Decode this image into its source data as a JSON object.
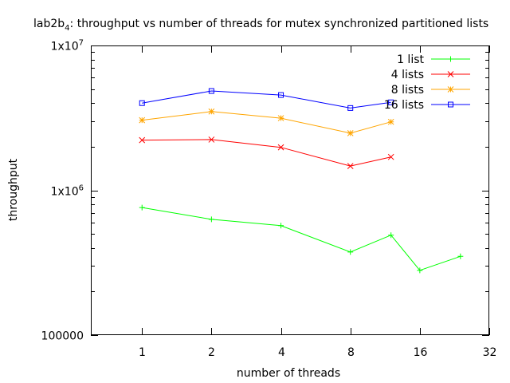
{
  "chart_data": {
    "type": "line",
    "title_prefix": "lab2b",
    "title_subscript": "4",
    "title_rest": ": throughput vs number of threads for mutex synchronized partitioned lists",
    "xlabel": "number of threads",
    "ylabel": "throughput",
    "x_scale": "log2",
    "y_scale": "log10",
    "xlim": [
      0.6,
      32
    ],
    "ylim": [
      100000,
      10000000
    ],
    "x_ticks": [
      {
        "value": 1,
        "label": "1"
      },
      {
        "value": 2,
        "label": "2"
      },
      {
        "value": 4,
        "label": "4"
      },
      {
        "value": 8,
        "label": "8"
      },
      {
        "value": 16,
        "label": "16"
      },
      {
        "value": 32,
        "label": "32"
      }
    ],
    "y_ticks": [
      {
        "value": 100000,
        "label": "100000"
      },
      {
        "value": 1000000,
        "label": "1x10",
        "exp": "6"
      },
      {
        "value": 10000000,
        "label": "1x10",
        "exp": "7"
      }
    ],
    "legend_position": "top-right",
    "grid": false,
    "series": [
      {
        "name": "1 list",
        "color": "#00ff00",
        "marker": "plus",
        "x": [
          1,
          2,
          4,
          8,
          12,
          16,
          24
        ],
        "y": [
          760000,
          630000,
          570000,
          375000,
          490000,
          280000,
          350000
        ]
      },
      {
        "name": "4 lists",
        "color": "#ff0000",
        "marker": "cross",
        "x": [
          1,
          2,
          4,
          8,
          12
        ],
        "y": [
          2220000,
          2240000,
          1980000,
          1470000,
          1700000
        ]
      },
      {
        "name": "8 lists",
        "color": "#ffa500",
        "marker": "star",
        "x": [
          1,
          2,
          4,
          8,
          12
        ],
        "y": [
          3050000,
          3500000,
          3150000,
          2480000,
          2970000
        ]
      },
      {
        "name": "16 lists",
        "color": "#0000ff",
        "marker": "box",
        "x": [
          1,
          2,
          4,
          8,
          12
        ],
        "y": [
          4000000,
          4850000,
          4550000,
          3700000,
          4050000
        ]
      }
    ]
  }
}
